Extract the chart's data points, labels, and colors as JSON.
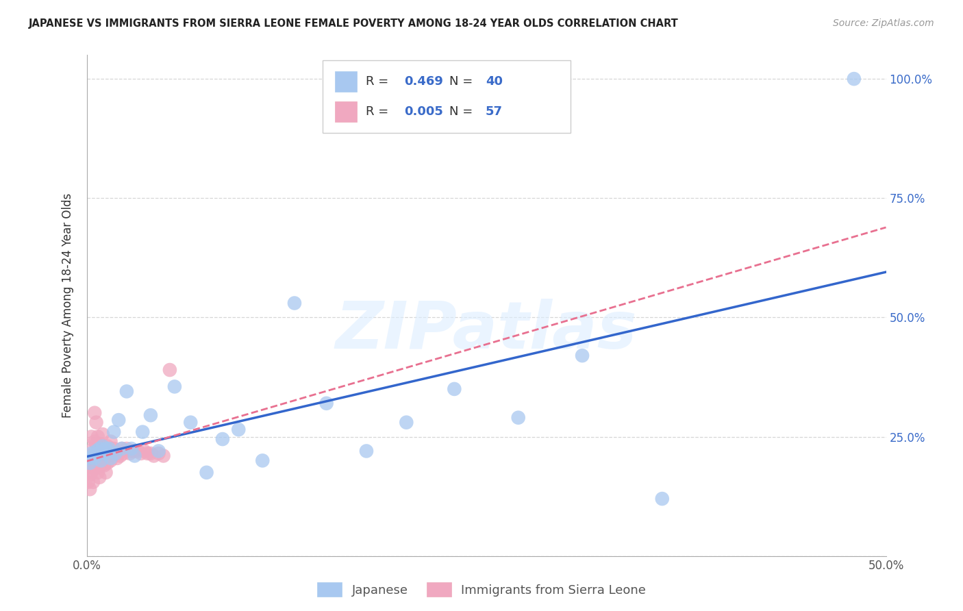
{
  "title": "JAPANESE VS IMMIGRANTS FROM SIERRA LEONE FEMALE POVERTY AMONG 18-24 YEAR OLDS CORRELATION CHART",
  "source": "Source: ZipAtlas.com",
  "ylabel": "Female Poverty Among 18-24 Year Olds",
  "xlim": [
    0.0,
    0.5
  ],
  "ylim": [
    0.0,
    1.05
  ],
  "watermark": "ZIPatlas",
  "legend_r1": "0.469",
  "legend_n1": "40",
  "legend_r2": "0.005",
  "legend_n2": "57",
  "japanese_color": "#a8c8f0",
  "sierra_leone_color": "#f0a8c0",
  "regression_japanese_color": "#3366cc",
  "regression_sierra_color": "#e87090",
  "japanese_x": [
    0.001,
    0.002,
    0.003,
    0.004,
    0.005,
    0.006,
    0.007,
    0.008,
    0.009,
    0.01,
    0.011,
    0.012,
    0.013,
    0.014,
    0.015,
    0.017,
    0.018,
    0.02,
    0.022,
    0.025,
    0.028,
    0.03,
    0.035,
    0.04,
    0.045,
    0.055,
    0.065,
    0.075,
    0.085,
    0.095,
    0.11,
    0.13,
    0.15,
    0.175,
    0.2,
    0.23,
    0.27,
    0.31,
    0.36,
    0.48
  ],
  "japanese_y": [
    0.205,
    0.195,
    0.215,
    0.21,
    0.205,
    0.22,
    0.215,
    0.225,
    0.2,
    0.23,
    0.215,
    0.225,
    0.22,
    0.225,
    0.205,
    0.26,
    0.215,
    0.285,
    0.225,
    0.345,
    0.225,
    0.21,
    0.26,
    0.295,
    0.22,
    0.355,
    0.28,
    0.175,
    0.245,
    0.265,
    0.2,
    0.53,
    0.32,
    0.22,
    0.28,
    0.35,
    0.29,
    0.42,
    0.12,
    1.0
  ],
  "sierra_leone_x": [
    0.001,
    0.001,
    0.002,
    0.002,
    0.002,
    0.003,
    0.003,
    0.003,
    0.004,
    0.004,
    0.004,
    0.005,
    0.005,
    0.005,
    0.006,
    0.006,
    0.006,
    0.007,
    0.007,
    0.007,
    0.008,
    0.008,
    0.008,
    0.009,
    0.009,
    0.01,
    0.01,
    0.011,
    0.011,
    0.012,
    0.012,
    0.013,
    0.013,
    0.014,
    0.015,
    0.015,
    0.016,
    0.017,
    0.018,
    0.019,
    0.02,
    0.021,
    0.022,
    0.023,
    0.025,
    0.027,
    0.028,
    0.03,
    0.032,
    0.034,
    0.036,
    0.038,
    0.04,
    0.042,
    0.045,
    0.048,
    0.052
  ],
  "sierra_leone_y": [
    0.185,
    0.155,
    0.21,
    0.17,
    0.14,
    0.25,
    0.205,
    0.175,
    0.225,
    0.185,
    0.155,
    0.3,
    0.24,
    0.195,
    0.28,
    0.235,
    0.185,
    0.25,
    0.21,
    0.175,
    0.235,
    0.2,
    0.165,
    0.225,
    0.19,
    0.255,
    0.215,
    0.225,
    0.19,
    0.21,
    0.175,
    0.23,
    0.195,
    0.21,
    0.24,
    0.2,
    0.215,
    0.225,
    0.215,
    0.205,
    0.215,
    0.21,
    0.225,
    0.215,
    0.225,
    0.215,
    0.22,
    0.22,
    0.22,
    0.215,
    0.22,
    0.215,
    0.215,
    0.21,
    0.215,
    0.21,
    0.39
  ],
  "background_color": "#ffffff",
  "grid_color": "#cccccc",
  "label_japanese": "Japanese",
  "label_sierra": "Immigrants from Sierra Leone"
}
